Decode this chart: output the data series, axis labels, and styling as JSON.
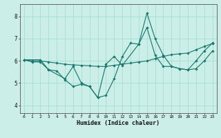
{
  "xlabel": "Humidex (Indice chaleur)",
  "background_color": "#cceee8",
  "grid_color": "#99ddcc",
  "line_color": "#1a7a6e",
  "xlim": [
    -0.5,
    23.5
  ],
  "ylim": [
    3.65,
    8.55
  ],
  "yticks": [
    4,
    5,
    6,
    7,
    8
  ],
  "xticks": [
    0,
    1,
    2,
    3,
    4,
    5,
    6,
    7,
    8,
    9,
    10,
    11,
    12,
    13,
    14,
    15,
    16,
    17,
    18,
    19,
    20,
    21,
    22,
    23
  ],
  "line1_x": [
    0,
    1,
    2,
    3,
    4,
    5,
    6,
    7,
    8,
    9,
    10,
    11,
    12,
    13,
    14,
    15,
    16,
    17,
    18,
    19,
    20,
    21,
    22,
    23
  ],
  "line1_y": [
    6.05,
    5.95,
    5.95,
    5.6,
    5.55,
    5.15,
    4.85,
    4.95,
    4.85,
    4.35,
    4.45,
    5.2,
    6.2,
    6.8,
    6.75,
    8.15,
    7.0,
    6.25,
    5.75,
    5.65,
    5.6,
    6.0,
    6.45,
    6.8
  ],
  "line2_x": [
    0,
    1,
    2,
    3,
    4,
    5,
    6,
    7,
    8,
    9,
    10,
    11,
    12,
    13,
    14,
    15,
    16,
    17,
    18,
    19,
    20,
    21,
    22,
    23
  ],
  "line2_y": [
    6.05,
    6.0,
    6.0,
    5.95,
    5.9,
    5.85,
    5.82,
    5.8,
    5.78,
    5.75,
    5.75,
    5.8,
    5.85,
    5.9,
    5.95,
    6.0,
    6.1,
    6.2,
    6.28,
    6.32,
    6.35,
    6.5,
    6.65,
    6.78
  ],
  "line3_x": [
    0,
    2,
    3,
    5,
    6,
    7,
    8,
    9,
    10,
    11,
    12,
    14,
    15,
    16,
    17,
    18,
    19,
    20,
    21,
    22,
    23
  ],
  "line3_y": [
    6.05,
    6.05,
    5.6,
    5.2,
    5.75,
    5.0,
    4.85,
    4.35,
    5.85,
    6.2,
    5.8,
    6.75,
    7.5,
    6.25,
    5.75,
    5.75,
    5.65,
    5.6,
    5.65,
    6.0,
    6.45
  ]
}
